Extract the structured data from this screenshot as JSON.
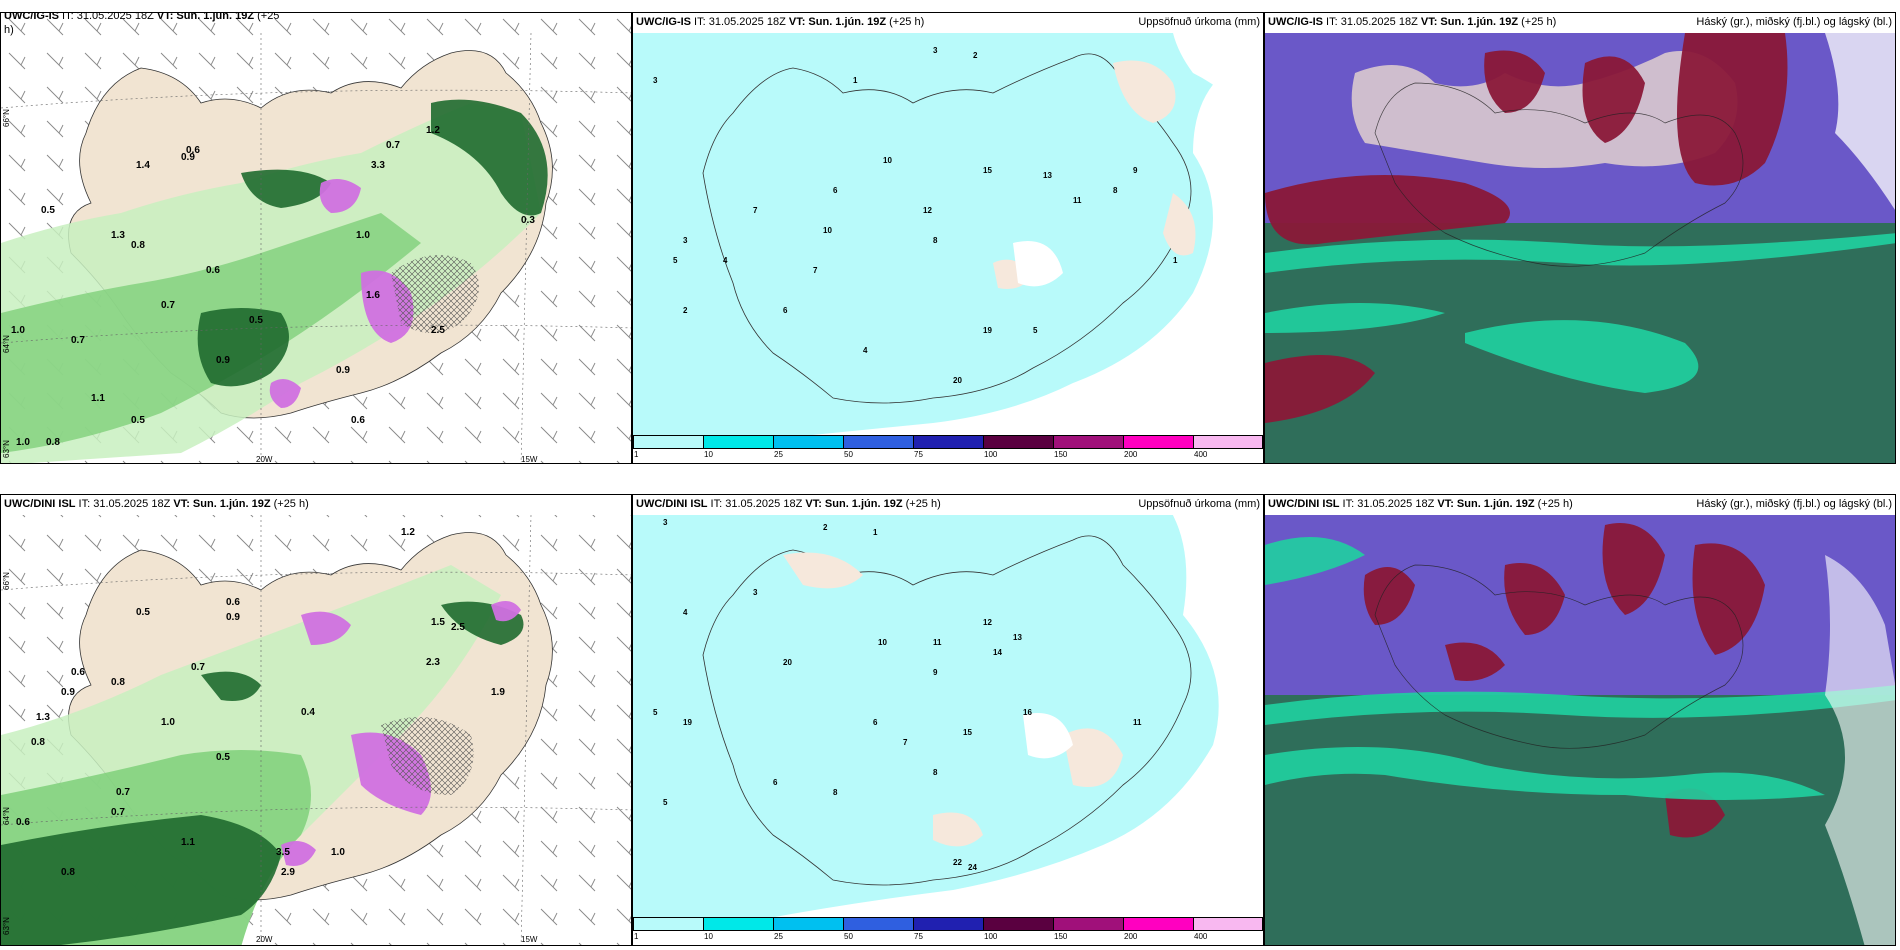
{
  "panels": {
    "p1": {
      "header_bold": "UWC/IG-IS",
      "header_it": " IT: 31.05.2025 18Z ",
      "header_vt_label": "VT:",
      "header_vt": " Sun. 1.jún. 19Z",
      "header_lead": " (+25",
      "header_lead2": "h)"
    },
    "p2": {
      "header_bold": "UWC/IG-IS",
      "header_it": " IT: 31.05.2025 18Z ",
      "header_vt_label": "VT:",
      "header_vt": " Sun. 1.jún. 19Z",
      "header_lead": " (+25 h)",
      "header_right": "Uppsöfnuð úrkoma (mm)"
    },
    "p3": {
      "header_bold": "UWC/IG-IS",
      "header_it": " IT: 31.05.2025 18Z ",
      "header_vt_label": "VT:",
      "header_vt": " Sun. 1.jún. 19Z",
      "header_lead": " (+25 h)",
      "header_right": "Háský (gr.), miðský (fj.bl.) og lágský (bl.)"
    },
    "p4": {
      "header_bold": "UWC/DINI ISL",
      "header_it": " IT: 31.05.2025 18Z ",
      "header_vt_label": "VT:",
      "header_vt": " Sun. 1.jún. 19Z",
      "header_lead": " (+25 h)"
    },
    "p5": {
      "header_bold": "UWC/DINI ISL",
      "header_it": " IT: 31.05.2025 18Z ",
      "header_vt_label": "VT:",
      "header_vt": " Sun. 1.jún. 19Z",
      "header_lead": " (+25 h)",
      "header_right": "Uppsöfnuð úrkoma (mm)"
    },
    "p6": {
      "header_bold": "UWC/DINI ISL",
      "header_it": " IT: 31.05.2025 18Z ",
      "header_vt_label": "VT:",
      "header_vt": " Sun. 1.jún. 19Z",
      "header_lead": " (+25 h)",
      "header_right": "Háský (gr.), miðský (fj.bl.) og lágský (bl.)"
    }
  },
  "axis_labels": {
    "lat_66": "66°N",
    "lat_64": "64°N",
    "lat_63": "63°N",
    "lon_20w": "20W",
    "lon_15w": "15W"
  },
  "precip_legend": {
    "ticks": [
      "1",
      "10",
      "25",
      "50",
      "75",
      "100",
      "150",
      "200",
      "400"
    ],
    "colors": [
      "#b8fafa",
      "#00e8e8",
      "#00c0f0",
      "#2f5fe0",
      "#2020b0",
      "#5a0040",
      "#a0107a",
      "#ff00c0",
      "#f8b8f0"
    ]
  },
  "colors": {
    "land": "#f1e4d2",
    "precip_light": "#b8fafa",
    "wind_green_light": "#c8f0c0",
    "wind_green_mid": "#7fd07a",
    "wind_green_dark": "#1f6a2f",
    "cloud_high": "#6a58c8",
    "cloud_mid": "#8a1838",
    "cloud_low": "#2f6e5a",
    "cloud_low_bright": "#20d0a0"
  },
  "labels_p1": [
    "0.6",
    "0.7",
    "1.2",
    "0.9",
    "0.8",
    "1.4",
    "0.5",
    "0.7",
    "1.0",
    "0.6",
    "0.9",
    "0.7",
    "0.5",
    "0.6",
    "1.0",
    "0.8",
    "0.9",
    "1.1",
    "1.6",
    "0.5",
    "3.3",
    "0.3",
    "2.5",
    "1.0",
    "1.3"
  ],
  "labels_p2": [
    "3",
    "2",
    "1",
    "3",
    "4",
    "5",
    "6",
    "10",
    "12",
    "15",
    "13",
    "11",
    "8",
    "9",
    "7",
    "19",
    "20",
    "5",
    "4",
    "2",
    "1",
    "6",
    "3",
    "7",
    "8",
    "10"
  ],
  "labels_p4": [
    "1.2",
    "0.5",
    "0.9",
    "0.6",
    "0.7",
    "0.8",
    "1.0",
    "1.5",
    "2.5",
    "0.8",
    "0.6",
    "0.9",
    "1.3",
    "0.7",
    "1.1",
    "0.5",
    "3.5",
    "2.9",
    "1.0",
    "0.6",
    "0.8",
    "0.7",
    "1.9",
    "0.4",
    "2.3"
  ],
  "labels_p5": [
    "3",
    "2",
    "4",
    "5",
    "6",
    "7",
    "8",
    "10",
    "11",
    "12",
    "13",
    "14",
    "15",
    "16",
    "19",
    "20",
    "22",
    "24",
    "9",
    "1",
    "3",
    "5",
    "6",
    "8",
    "11"
  ]
}
